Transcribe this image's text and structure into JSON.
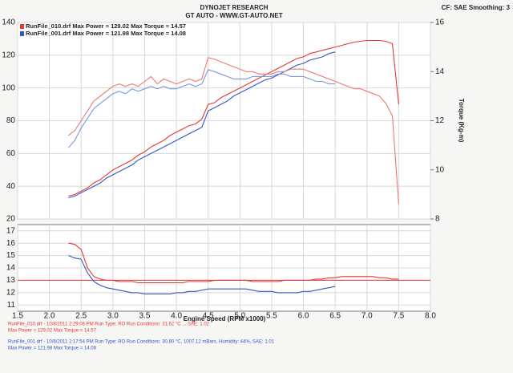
{
  "header": {
    "title": "DYNOJET RESEARCH",
    "subtitle": "GT AUTO - WWW.GT-AUTO.NET",
    "settings": "CF: SAE  Smoothing: 3"
  },
  "chart_data": [
    {
      "type": "line",
      "legend": [
        {
          "text": "RunFile_010.drf Max Power = 129.02   Max Torque = 14.57",
          "color": "#e23b35"
        },
        {
          "text": "RunFile_001.drf Max Power = 121.98   Max Torque = 14.08",
          "color": "#3556c4"
        }
      ],
      "y2_label": "Torque (Kg-m)",
      "x": [
        2.3,
        2.4,
        2.5,
        2.6,
        2.7,
        2.8,
        2.9,
        3.0,
        3.1,
        3.2,
        3.3,
        3.4,
        3.5,
        3.6,
        3.7,
        3.8,
        3.9,
        4.0,
        4.1,
        4.2,
        4.3,
        4.4,
        4.5,
        4.6,
        4.7,
        4.8,
        4.9,
        5.0,
        5.1,
        5.2,
        5.3,
        5.4,
        5.5,
        5.6,
        5.7,
        5.8,
        5.9,
        6.0,
        6.1,
        6.2,
        6.3,
        6.4,
        6.5,
        6.6,
        6.7,
        6.8,
        6.9,
        7.0,
        7.1,
        7.2,
        7.3,
        7.4,
        7.5
      ],
      "xlim": [
        1.5,
        8
      ],
      "xticks": [
        1.5,
        2,
        2.5,
        3,
        3.5,
        4,
        4.5,
        5,
        5.5,
        6,
        6.5,
        7,
        7.5,
        8
      ],
      "ylim": [
        20,
        140
      ],
      "yticks": [
        20,
        40,
        60,
        80,
        100,
        120,
        140
      ],
      "y2lim": [
        8,
        16
      ],
      "y2ticks": [
        8,
        10,
        12,
        14,
        16
      ],
      "grid": true,
      "series": [
        {
          "color": "#e23b35",
          "values": [
            34,
            35,
            37,
            39,
            42,
            44,
            47,
            50,
            52,
            54,
            56,
            59,
            61,
            64,
            66,
            68,
            71,
            73,
            75,
            77,
            78,
            81,
            90,
            91,
            94,
            96,
            98,
            100,
            102,
            104,
            106,
            108,
            110,
            112,
            114,
            116,
            118,
            119,
            121,
            122,
            123,
            124,
            125,
            126,
            127,
            128,
            128.5,
            129,
            129,
            129,
            128.5,
            127,
            90
          ]
        },
        {
          "color": "#3556c4",
          "values": [
            33,
            34,
            36,
            38,
            40,
            42,
            45,
            47,
            49,
            51,
            53,
            56,
            58,
            60,
            62,
            64,
            66,
            68,
            70,
            72,
            74,
            76,
            86,
            88,
            90,
            92,
            95,
            97,
            99,
            101,
            103,
            105,
            106,
            108,
            110,
            112,
            114,
            115,
            117,
            118,
            119,
            121,
            122,
            null,
            null,
            null,
            null,
            null,
            null,
            null,
            null,
            null,
            null
          ]
        },
        {
          "color": "#ee7a74",
          "axis": "y2",
          "values": [
            11.4,
            11.6,
            12.0,
            12.4,
            12.8,
            13.0,
            13.2,
            13.4,
            13.5,
            13.4,
            13.5,
            13.4,
            13.6,
            13.8,
            13.5,
            13.7,
            13.6,
            13.5,
            13.6,
            13.7,
            13.6,
            13.7,
            14.57,
            14.5,
            14.4,
            14.3,
            14.2,
            14.1,
            14.0,
            14.0,
            13.9,
            13.9,
            13.9,
            14.0,
            14.0,
            14.1,
            14.1,
            14.1,
            14.0,
            13.9,
            13.8,
            13.7,
            13.6,
            13.5,
            13.4,
            13.3,
            13.3,
            13.2,
            13.1,
            13.0,
            12.7,
            12.2,
            8.6
          ]
        },
        {
          "color": "#7b95e0",
          "axis": "y2",
          "values": [
            10.9,
            11.2,
            11.7,
            12.1,
            12.5,
            12.7,
            12.9,
            13.1,
            13.2,
            13.1,
            13.3,
            13.2,
            13.3,
            13.4,
            13.3,
            13.4,
            13.3,
            13.3,
            13.4,
            13.5,
            13.4,
            13.5,
            14.08,
            14.0,
            13.9,
            13.8,
            13.7,
            13.7,
            13.7,
            13.8,
            13.8,
            13.8,
            13.8,
            13.9,
            13.9,
            13.8,
            13.8,
            13.8,
            13.7,
            13.6,
            13.6,
            13.5,
            13.5,
            null,
            null,
            null,
            null,
            null,
            null,
            null,
            null,
            null,
            null
          ]
        }
      ]
    },
    {
      "type": "line",
      "x_label": "Engine Speed (RPM x1000)",
      "x": [
        2.3,
        2.4,
        2.5,
        2.6,
        2.7,
        2.8,
        2.9,
        3.0,
        3.1,
        3.2,
        3.3,
        3.4,
        3.5,
        3.6,
        3.7,
        3.8,
        3.9,
        4.0,
        4.1,
        4.2,
        4.3,
        4.4,
        4.5,
        4.6,
        4.7,
        4.8,
        4.9,
        5.0,
        5.1,
        5.2,
        5.3,
        5.4,
        5.5,
        5.6,
        5.7,
        5.8,
        5.9,
        6.0,
        6.1,
        6.2,
        6.3,
        6.4,
        6.5,
        6.6,
        6.7,
        6.8,
        6.9,
        7.0,
        7.1,
        7.2,
        7.3,
        7.4,
        7.5
      ],
      "xlim": [
        1.5,
        8
      ],
      "xticks": [
        1.5,
        {
          "value": 2,
          "label": "2.0"
        },
        2.5,
        {
          "value": 3,
          "label": "3.0"
        },
        3.5,
        {
          "value": 4,
          "label": "4.0"
        },
        4.5,
        {
          "value": 5,
          "label": "5.0"
        },
        5.5,
        {
          "value": 6,
          "label": "6.0"
        },
        6.5,
        {
          "value": 7,
          "label": "7.0"
        },
        7.5,
        {
          "value": 8,
          "label": "8.0"
        }
      ],
      "ylim": [
        10.5,
        17.5
      ],
      "yticks": [
        11,
        12,
        13,
        14,
        15,
        16,
        17
      ],
      "grid": true,
      "reference_line": 13,
      "reference_color": "#e23b35",
      "series": [
        {
          "color": "#e23b35",
          "values": [
            16.0,
            15.9,
            15.5,
            14.0,
            13.3,
            13.1,
            13.0,
            13.0,
            12.9,
            12.9,
            12.9,
            12.8,
            12.8,
            12.8,
            12.8,
            12.8,
            12.8,
            12.8,
            12.8,
            12.9,
            12.9,
            12.9,
            12.9,
            13.0,
            13.0,
            13.0,
            13.0,
            13.0,
            13.0,
            12.9,
            12.9,
            12.9,
            12.9,
            12.9,
            13.0,
            13.0,
            13.0,
            13.0,
            13.0,
            13.1,
            13.1,
            13.2,
            13.2,
            13.3,
            13.3,
            13.3,
            13.3,
            13.3,
            13.3,
            13.2,
            13.2,
            13.1,
            13.1
          ]
        },
        {
          "color": "#3556c4",
          "values": [
            15.0,
            14.8,
            14.7,
            13.6,
            12.9,
            12.6,
            12.4,
            12.3,
            12.2,
            12.1,
            12.0,
            12.0,
            11.9,
            11.9,
            11.9,
            11.9,
            11.9,
            12.0,
            12.0,
            12.1,
            12.1,
            12.2,
            12.3,
            12.3,
            12.3,
            12.3,
            12.3,
            12.3,
            12.3,
            12.2,
            12.1,
            12.1,
            12.1,
            12.0,
            12.0,
            12.0,
            12.0,
            12.1,
            12.1,
            12.2,
            12.3,
            12.4,
            12.5,
            null,
            null,
            null,
            null,
            null,
            null,
            null,
            null,
            null,
            null
          ]
        }
      ]
    }
  ],
  "footer": [
    {
      "text": "RunFile_010.drf - 10/8/2011 2:29:06 PM  Run Type: RO  Run Conditions: 31.62 °C ... SAE: 1.02",
      "color": "#e23b35"
    },
    {
      "text": "Max Power = 129.02  Max Torque = 14.57",
      "color": "#e23b35"
    },
    {
      "text": "RunFile_001.drf - 10/8/2011 2:17:54 PM  Run Type: RO  Run Conditions: 30.80 °C, 1007.12 mBars,  Humidity: 44%,  SAE: 1.01",
      "color": "#3556c4"
    },
    {
      "text": "Max Power = 121.98  Max Torque = 14.08",
      "color": "#3556c4"
    }
  ]
}
